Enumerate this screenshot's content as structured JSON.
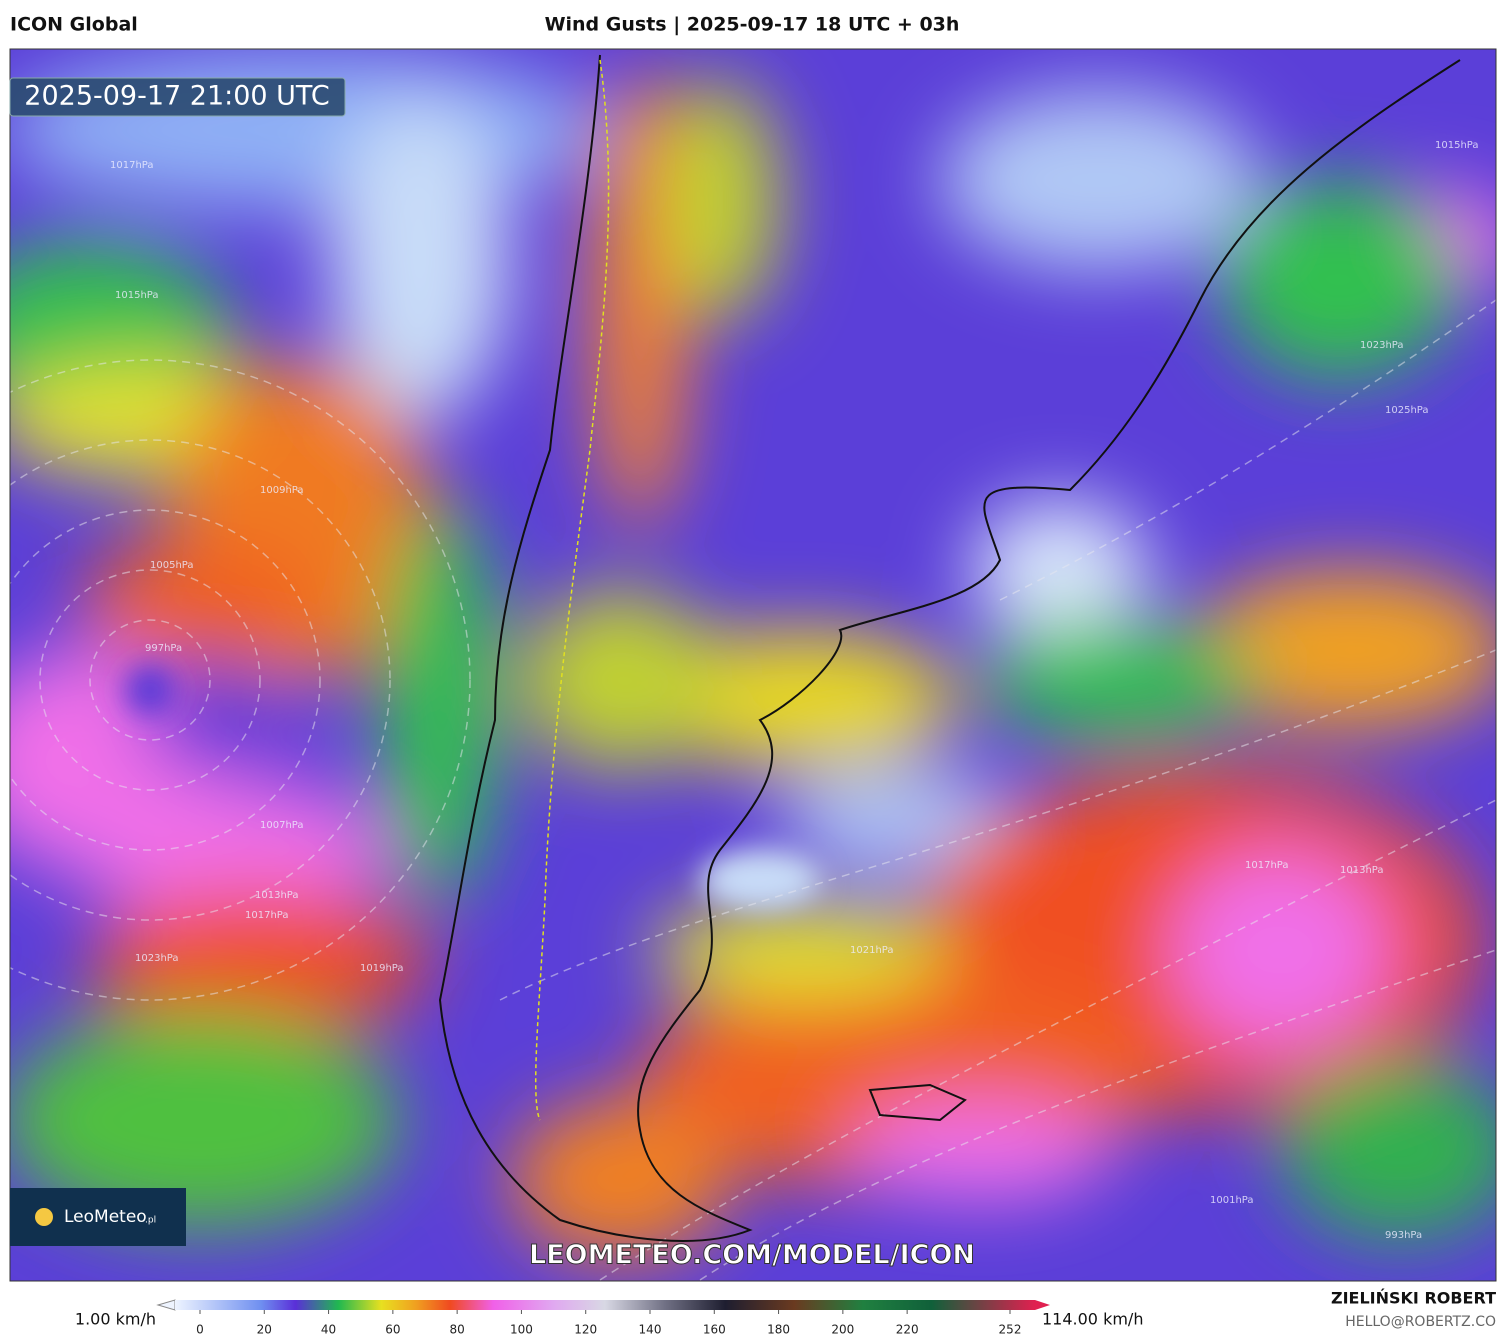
{
  "header": {
    "model": "ICON Global",
    "title": "Wind Gusts | 2025-09-17 18 UTC + 03h"
  },
  "map": {
    "timestamp": "2025-09-17 21:00 UTC",
    "logo": "LeoMeteo",
    "logo_suffix": ".pl",
    "url": "LEOMETEO.COM/MODEL/ICON",
    "isobar_labels": [
      "1017hPa",
      "1015hPa",
      "1009hPa",
      "1005hPa",
      "997hPa",
      "1007hPa",
      "1013hPa",
      "1017hPa",
      "1023hPa",
      "1019hPa",
      "1023hPa",
      "1025hPa",
      "1015hPa",
      "1021hPa",
      "1017hPa",
      "1013hPa",
      "1001hPa",
      "993hPa"
    ]
  },
  "legend": {
    "min_label": "1.00 km/h",
    "max_label": "114.00 km/h",
    "ticks": [
      0,
      20,
      40,
      60,
      80,
      100,
      120,
      140,
      160,
      180,
      200,
      220,
      252
    ]
  },
  "author": {
    "name": "ZIELIŃSKI ROBERT",
    "email": "HELLO@ROBERTZ.CO"
  }
}
